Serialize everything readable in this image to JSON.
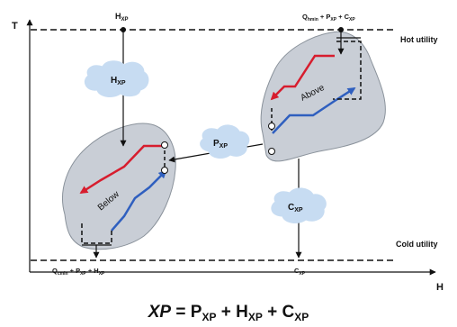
{
  "axes": {
    "y_label": "T",
    "x_label": "H"
  },
  "utilities": {
    "hot": "Hot utility",
    "cold": "Cold utility"
  },
  "top_labels": {
    "hxp_main": "H",
    "hxp_sub": "XP",
    "q_main": "Q",
    "q_sub": "hmin",
    "q_mid": " + P",
    "q_mid_sub": "XP",
    "q_end": " + C",
    "q_end_sub": "XP"
  },
  "bottom_labels": {
    "q_main": "Q",
    "q_sub": "cmin",
    "q_mid": " + P",
    "q_mid_sub": "XP",
    "q_end": " + H",
    "q_end_sub": "XP",
    "cxp_main": "C",
    "cxp_sub": "XP"
  },
  "clouds": {
    "h_main": "H",
    "h_sub": "XP",
    "p_main": "P",
    "p_sub": "XP",
    "c_main": "C",
    "c_sub": "XP"
  },
  "regions": {
    "above": "Above",
    "below": "Below"
  },
  "equation": {
    "lhs": "XP",
    "p": "P",
    "p_sub": "XP",
    "h": "H",
    "h_sub": "XP",
    "c": "C",
    "c_sub": "XP"
  },
  "colors": {
    "hot": "#d71d2e",
    "cold": "#2f5fbf",
    "region": "#c9ced6",
    "cloud": "#c7dcf2"
  }
}
